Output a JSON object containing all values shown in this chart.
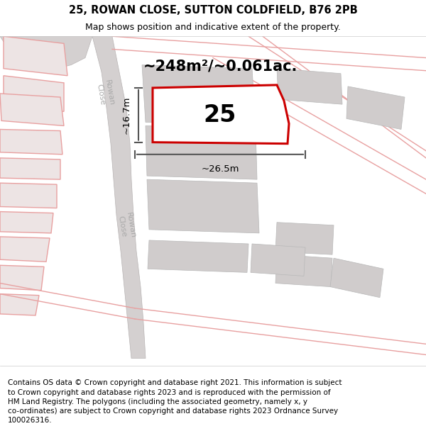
{
  "title_line1": "25, ROWAN CLOSE, SUTTON COLDFIELD, B76 2PB",
  "title_line2": "Map shows position and indicative extent of the property.",
  "area_text": "~248m²/~0.061ac.",
  "number_label": "25",
  "dim_width": "~26.5m",
  "dim_height": "~16.7m",
  "bg_color": "#f2eeee",
  "road_fill": "#d4d0d0",
  "grey_block": "#d0cccc",
  "red_outline": "#cc0000",
  "pink_line": "#e8a0a0",
  "dim_color": "#555555",
  "title_fontsize": 10.5,
  "subtitle_fontsize": 9,
  "area_fontsize": 15,
  "number_fontsize": 24,
  "dim_fontsize": 9.5,
  "footer_fontsize": 7.5,
  "road_label_color": "#aaaaaa",
  "footer_lines": [
    "Contains OS data © Crown copyright and database right 2021. This information is subject to Crown copyright and database rights 2023 and is reproduced with the permission of",
    "HM Land Registry. The polygons (including the associated geometry, namely x, y co-ordinates) are subject to Crown copyright and database rights 2023 Ordnance Survey",
    "100026316."
  ]
}
